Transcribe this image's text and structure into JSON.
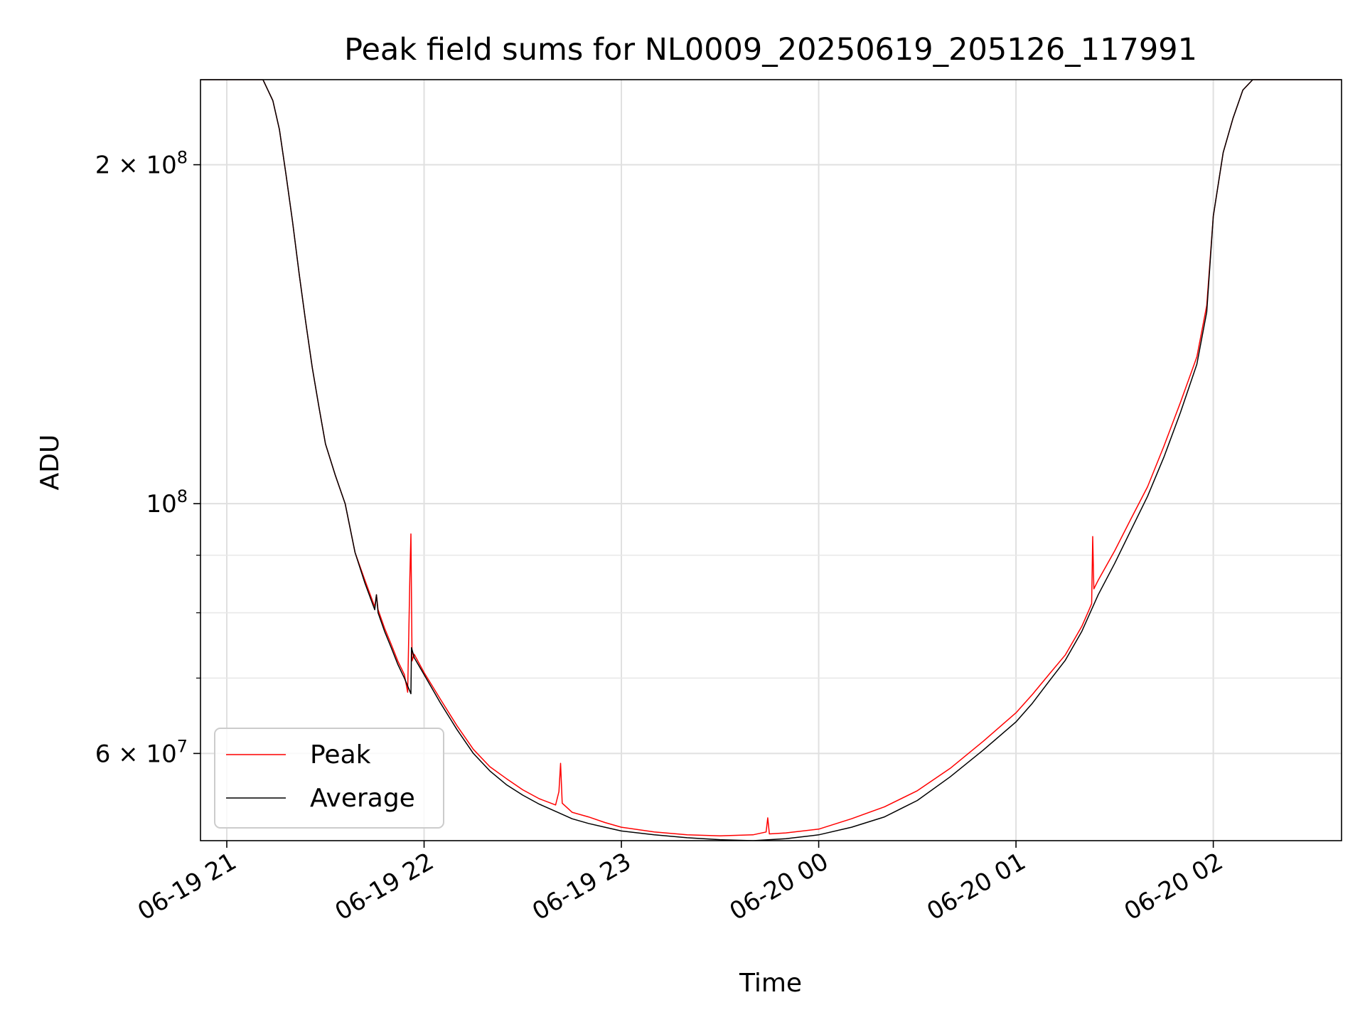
{
  "chart_data": {
    "type": "line",
    "title": "Peak field sums for NL0009_20250619_205126_117991",
    "xlabel": "Time",
    "ylabel": "ADU",
    "y_scale": "log",
    "x_range": [
      "06-19 20:52",
      "06-20 02:39"
    ],
    "ylim": [
      50200000,
      238000000
    ],
    "grid": true,
    "legend_position": "lower-left",
    "x_ticks": [
      {
        "label": "06-19 21",
        "value": "06-19 21:00"
      },
      {
        "label": "06-19 22",
        "value": "06-19 22:00"
      },
      {
        "label": "06-19 23",
        "value": "06-19 23:00"
      },
      {
        "label": "06-20 00",
        "value": "06-20 00:00"
      },
      {
        "label": "06-20 01",
        "value": "06-20 01:00"
      },
      {
        "label": "06-20 02",
        "value": "06-20 02:00"
      }
    ],
    "y_ticks_major": [
      {
        "value": 100000000,
        "mantissa": "",
        "base": "10",
        "exp": "8"
      },
      {
        "value": 200000000,
        "mantissa": "2",
        "base": "10",
        "exp": "8"
      },
      {
        "value": 60000000,
        "mantissa": "6",
        "base": "10",
        "exp": "7"
      }
    ],
    "y_ticks_minor": [
      70000000,
      80000000,
      90000000
    ],
    "series": [
      {
        "name": "Peak",
        "color": "#ff0000",
        "x": [
          "06-19 20:52",
          "06-19 21:11",
          "06-19 21:14",
          "06-19 21:16",
          "06-19 21:18",
          "06-19 21:20",
          "06-19 21:22",
          "06-19 21:24",
          "06-19 21:26",
          "06-19 21:28",
          "06-19 21:30",
          "06-19 21:33",
          "06-19 21:36",
          "06-19 21:39",
          "06-19 21:42",
          "06-19 21:45",
          "06-19 21:45:30",
          "06-19 21:46",
          "06-19 21:48",
          "06-19 21:50",
          "06-19 21:52",
          "06-19 21:54",
          "06-19 21:55",
          "06-19 21:55:20",
          "06-19 21:55:40",
          "06-19 21:56",
          "06-19 21:56:20",
          "06-19 21:57",
          "06-19 22:00",
          "06-19 22:05",
          "06-19 22:10",
          "06-19 22:15",
          "06-19 22:20",
          "06-19 22:25",
          "06-19 22:30",
          "06-19 22:35",
          "06-19 22:40",
          "06-19 22:41",
          "06-19 22:41:30",
          "06-19 22:42",
          "06-19 22:45",
          "06-19 22:50",
          "06-19 22:55",
          "06-19 23:00",
          "06-19 23:10",
          "06-19 23:20",
          "06-19 23:30",
          "06-19 23:40",
          "06-19 23:44",
          "06-19 23:44:30",
          "06-19 23:45",
          "06-19 23:50",
          "06-20 00:00",
          "06-20 00:10",
          "06-20 00:20",
          "06-20 00:30",
          "06-20 00:40",
          "06-20 00:50",
          "06-20 01:00",
          "06-20 01:05",
          "06-20 01:10",
          "06-20 01:15",
          "06-20 01:20",
          "06-20 01:22",
          "06-20 01:23",
          "06-20 01:23:20",
          "06-20 01:23:40",
          "06-20 01:25",
          "06-20 01:30",
          "06-20 01:35",
          "06-20 01:40",
          "06-20 01:45",
          "06-20 01:50",
          "06-20 01:55",
          "06-20 01:58",
          "06-20 02:00",
          "06-20 02:03",
          "06-20 02:06",
          "06-20 02:09",
          "06-20 02:12",
          "06-20 02:39"
        ],
        "y": [
          238000000,
          238000000,
          228000000,
          215000000,
          196000000,
          178000000,
          160000000,
          145000000,
          132000000,
          122000000,
          113000000,
          106000000,
          100000000,
          90500000,
          85500000,
          81000000,
          83000000,
          80500000,
          77500000,
          75000000,
          72500000,
          70500000,
          68000000,
          76000000,
          86000000,
          94000000,
          72500000,
          73500000,
          70800000,
          67000000,
          63500000,
          60500000,
          58400000,
          57000000,
          55700000,
          54700000,
          54000000,
          55500000,
          58800000,
          54200000,
          53200000,
          52700000,
          52100000,
          51600000,
          51100000,
          50800000,
          50700000,
          50800000,
          51100000,
          52600000,
          50900000,
          51000000,
          51400000,
          52500000,
          53800000,
          55600000,
          58200000,
          61500000,
          65200000,
          67700000,
          70500000,
          73400000,
          77800000,
          80200000,
          81500000,
          93500000,
          84000000,
          85500000,
          90800000,
          97000000,
          103500000,
          112500000,
          123000000,
          135000000,
          150000000,
          180000000,
          205000000,
          220000000,
          233000000,
          238000000,
          238000000
        ]
      },
      {
        "name": "Average",
        "color": "#000000",
        "x": [
          "06-19 20:52",
          "06-19 21:11",
          "06-19 21:14",
          "06-19 21:16",
          "06-19 21:18",
          "06-19 21:20",
          "06-19 21:22",
          "06-19 21:24",
          "06-19 21:26",
          "06-19 21:28",
          "06-19 21:30",
          "06-19 21:33",
          "06-19 21:36",
          "06-19 21:39",
          "06-19 21:42",
          "06-19 21:45",
          "06-19 21:45:30",
          "06-19 21:46",
          "06-19 21:48",
          "06-19 21:50",
          "06-19 21:52",
          "06-19 21:54",
          "06-19 21:56",
          "06-19 21:56:10",
          "06-19 21:57",
          "06-19 22:00",
          "06-19 22:05",
          "06-19 22:10",
          "06-19 22:15",
          "06-19 22:20",
          "06-19 22:25",
          "06-19 22:30",
          "06-19 22:35",
          "06-19 22:40",
          "06-19 22:45",
          "06-19 22:50",
          "06-19 22:55",
          "06-19 23:00",
          "06-19 23:10",
          "06-19 23:20",
          "06-19 23:30",
          "06-19 23:40",
          "06-19 23:50",
          "06-20 00:00",
          "06-20 00:10",
          "06-20 00:20",
          "06-20 00:30",
          "06-20 00:40",
          "06-20 00:50",
          "06-20 01:00",
          "06-20 01:05",
          "06-20 01:10",
          "06-20 01:15",
          "06-20 01:20",
          "06-20 01:25",
          "06-20 01:30",
          "06-20 01:35",
          "06-20 01:40",
          "06-20 01:45",
          "06-20 01:50",
          "06-20 01:55",
          "06-20 01:58",
          "06-20 02:00",
          "06-20 02:03",
          "06-20 02:06",
          "06-20 02:09",
          "06-20 02:12",
          "06-20 02:39"
        ],
        "y": [
          238000000,
          238000000,
          228000000,
          215000000,
          196000000,
          178000000,
          160000000,
          145000000,
          132000000,
          122000000,
          113000000,
          106000000,
          100000000,
          90500000,
          85000000,
          80500000,
          83000000,
          80000000,
          77000000,
          74500000,
          72000000,
          70000000,
          67800000,
          74500000,
          73000000,
          70500000,
          66500000,
          63000000,
          60000000,
          57900000,
          56300000,
          55100000,
          54100000,
          53300000,
          52500000,
          52000000,
          51600000,
          51200000,
          50800000,
          50500000,
          50300000,
          50200000,
          50400000,
          50800000,
          51600000,
          52700000,
          54500000,
          57200000,
          60400000,
          64000000,
          66500000,
          69500000,
          72600000,
          77000000,
          83000000,
          88500000,
          94800000,
          101500000,
          110000000,
          120500000,
          133000000,
          148000000,
          180000000,
          205000000,
          220000000,
          233000000,
          238000000,
          238000000
        ]
      }
    ]
  }
}
